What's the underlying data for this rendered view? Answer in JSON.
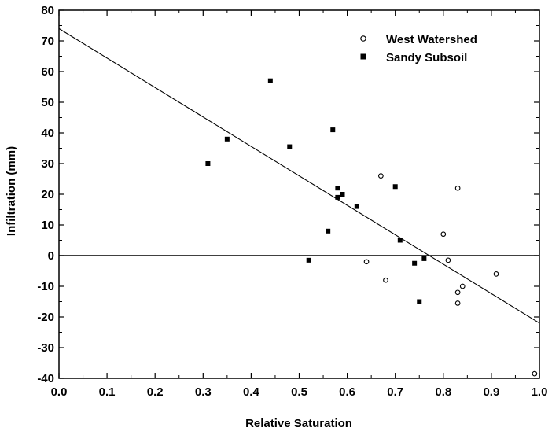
{
  "chart_data": {
    "type": "scatter",
    "title": "",
    "xlabel": "Relative Saturation",
    "ylabel": "Infiltration (mm)",
    "xlim": [
      0.0,
      1.0
    ],
    "ylim": [
      -40,
      80
    ],
    "x_ticks": [
      0.0,
      0.1,
      0.2,
      0.3,
      0.4,
      0.5,
      0.6,
      0.7,
      0.8,
      0.9,
      1.0
    ],
    "x_tick_labels": [
      "0.0",
      "0.1",
      "0.2",
      "0.3",
      "0.4",
      "0.5",
      "0.6",
      "0.7",
      "0.8",
      "0.9",
      "1.0"
    ],
    "y_ticks": [
      -40,
      -30,
      -20,
      -10,
      0,
      10,
      20,
      30,
      40,
      50,
      60,
      70,
      80
    ],
    "y_tick_labels": [
      "-40",
      "-30",
      "-20",
      "-10",
      "0",
      "10",
      "20",
      "30",
      "40",
      "50",
      "60",
      "70",
      "80"
    ],
    "grid": false,
    "legend_position": "top-right",
    "series": [
      {
        "name": "West Watershed",
        "marker": "open-circle",
        "points": [
          {
            "x": 0.64,
            "y": -2
          },
          {
            "x": 0.67,
            "y": 26
          },
          {
            "x": 0.68,
            "y": -8
          },
          {
            "x": 0.8,
            "y": 7
          },
          {
            "x": 0.81,
            "y": -1.5
          },
          {
            "x": 0.83,
            "y": 22
          },
          {
            "x": 0.83,
            "y": -12
          },
          {
            "x": 0.83,
            "y": -15.5
          },
          {
            "x": 0.84,
            "y": -10
          },
          {
            "x": 0.91,
            "y": -6
          },
          {
            "x": 0.99,
            "y": -38.5
          }
        ]
      },
      {
        "name": "Sandy Subsoil",
        "marker": "filled-square",
        "points": [
          {
            "x": 0.31,
            "y": 30
          },
          {
            "x": 0.35,
            "y": 38
          },
          {
            "x": 0.44,
            "y": 57
          },
          {
            "x": 0.48,
            "y": 35.5
          },
          {
            "x": 0.52,
            "y": -1.5
          },
          {
            "x": 0.56,
            "y": 8
          },
          {
            "x": 0.57,
            "y": 41
          },
          {
            "x": 0.58,
            "y": 22
          },
          {
            "x": 0.58,
            "y": 19
          },
          {
            "x": 0.59,
            "y": 20
          },
          {
            "x": 0.62,
            "y": 16
          },
          {
            "x": 0.7,
            "y": 22.5
          },
          {
            "x": 0.71,
            "y": 5
          },
          {
            "x": 0.74,
            "y": -2.5
          },
          {
            "x": 0.75,
            "y": -15
          },
          {
            "x": 0.76,
            "y": -1
          }
        ]
      }
    ],
    "reference_lines": [
      {
        "kind": "regression",
        "x": [
          0.0,
          1.0
        ],
        "y": [
          74,
          -22
        ]
      },
      {
        "kind": "zero",
        "x": [
          0.0,
          1.0
        ],
        "y": [
          0,
          0
        ]
      }
    ],
    "colors": {
      "axis": "#000000",
      "marker": "#000000",
      "background": "#ffffff"
    }
  }
}
